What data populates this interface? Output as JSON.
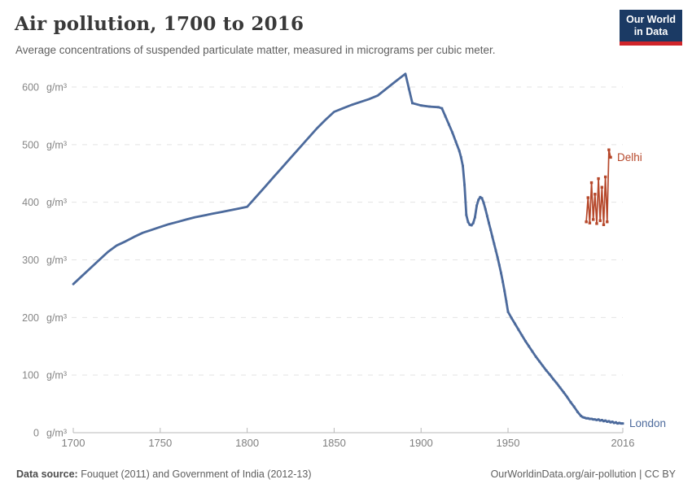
{
  "header": {
    "title": "Air pollution, 1700 to 2016",
    "subtitle": "Average concentrations of suspended particulate matter, measured in micrograms per cubic meter."
  },
  "logo": {
    "line1": "Our World",
    "line2": "in Data",
    "bg_color": "#1b3a64",
    "accent_color": "#d0252a"
  },
  "footer": {
    "source_label": "Data source:",
    "source_text": " Fouquet (2011) and Government of India (2012-13)",
    "link_text": "OurWorldinData.org/air-pollution | CC BY"
  },
  "chart_data": {
    "type": "line",
    "title": "Air pollution, 1700 to 2016",
    "xlabel": "",
    "ylabel": "",
    "unit": "g/m³",
    "xlim": [
      1700,
      2016
    ],
    "ylim": [
      0,
      600
    ],
    "x_ticks": [
      1700,
      1750,
      1800,
      1850,
      1900,
      1950,
      2016
    ],
    "y_ticks": [
      0,
      100,
      200,
      300,
      400,
      500,
      600
    ],
    "grid": "horizontal-dashed",
    "grid_color": "#e3e3e3",
    "axis_color": "#b8b8b8",
    "tick_label_color": "#858585",
    "legend_position": "line-end-labels",
    "series": [
      {
        "name": "London",
        "color": "#4C6A9C",
        "line_width": 2.8,
        "markers_from_year": 1893,
        "points": [
          [
            1700,
            258
          ],
          [
            1705,
            272
          ],
          [
            1710,
            286
          ],
          [
            1715,
            300
          ],
          [
            1720,
            314
          ],
          [
            1725,
            325
          ],
          [
            1730,
            332
          ],
          [
            1735,
            340
          ],
          [
            1740,
            347
          ],
          [
            1745,
            352
          ],
          [
            1750,
            357
          ],
          [
            1755,
            362
          ],
          [
            1760,
            366
          ],
          [
            1765,
            370
          ],
          [
            1770,
            374
          ],
          [
            1775,
            377
          ],
          [
            1780,
            380
          ],
          [
            1785,
            383
          ],
          [
            1790,
            386
          ],
          [
            1795,
            389
          ],
          [
            1800,
            392
          ],
          [
            1805,
            409
          ],
          [
            1810,
            426
          ],
          [
            1815,
            443
          ],
          [
            1820,
            460
          ],
          [
            1825,
            477
          ],
          [
            1830,
            494
          ],
          [
            1835,
            511
          ],
          [
            1840,
            528
          ],
          [
            1845,
            543
          ],
          [
            1850,
            557
          ],
          [
            1855,
            563
          ],
          [
            1860,
            569
          ],
          [
            1865,
            574
          ],
          [
            1870,
            579
          ],
          [
            1875,
            585
          ],
          [
            1880,
            597
          ],
          [
            1885,
            609
          ],
          [
            1891,
            623
          ],
          [
            1893,
            597
          ],
          [
            1895,
            572
          ],
          [
            1900,
            568
          ],
          [
            1905,
            566
          ],
          [
            1910,
            565
          ],
          [
            1912,
            563
          ],
          [
            1914,
            549
          ],
          [
            1916,
            535
          ],
          [
            1918,
            521
          ],
          [
            1920,
            505
          ],
          [
            1922,
            489
          ],
          [
            1923,
            478
          ],
          [
            1924,
            463
          ],
          [
            1925,
            430
          ],
          [
            1926,
            378
          ],
          [
            1927,
            366
          ],
          [
            1928,
            361
          ],
          [
            1929,
            360
          ],
          [
            1930,
            364
          ],
          [
            1931,
            374
          ],
          [
            1932,
            394
          ],
          [
            1933,
            404
          ],
          [
            1934,
            409
          ],
          [
            1935,
            407
          ],
          [
            1936,
            399
          ],
          [
            1937,
            388
          ],
          [
            1938,
            376
          ],
          [
            1939,
            364
          ],
          [
            1940,
            352
          ],
          [
            1941,
            340
          ],
          [
            1942,
            328
          ],
          [
            1943,
            316
          ],
          [
            1944,
            304
          ],
          [
            1945,
            291
          ],
          [
            1946,
            277
          ],
          [
            1947,
            262
          ],
          [
            1948,
            246
          ],
          [
            1949,
            228
          ],
          [
            1950,
            210
          ],
          [
            1952,
            199
          ],
          [
            1954,
            189
          ],
          [
            1956,
            179
          ],
          [
            1958,
            169
          ],
          [
            1960,
            159
          ],
          [
            1962,
            150
          ],
          [
            1964,
            141
          ],
          [
            1966,
            132
          ],
          [
            1968,
            124
          ],
          [
            1970,
            116
          ],
          [
            1972,
            108
          ],
          [
            1974,
            101
          ],
          [
            1976,
            93
          ],
          [
            1978,
            86
          ],
          [
            1980,
            78
          ],
          [
            1982,
            70
          ],
          [
            1984,
            62
          ],
          [
            1986,
            53
          ],
          [
            1988,
            45
          ],
          [
            1990,
            36
          ],
          [
            1992,
            29
          ],
          [
            1993,
            27
          ],
          [
            1994,
            26
          ],
          [
            1995,
            25
          ],
          [
            1996,
            25
          ],
          [
            1997,
            24
          ],
          [
            1998,
            24
          ],
          [
            1999,
            23
          ],
          [
            2000,
            23
          ],
          [
            2001,
            22
          ],
          [
            2002,
            23
          ],
          [
            2003,
            21
          ],
          [
            2004,
            22
          ],
          [
            2005,
            20
          ],
          [
            2006,
            21
          ],
          [
            2007,
            19
          ],
          [
            2008,
            20
          ],
          [
            2009,
            18
          ],
          [
            2010,
            19
          ],
          [
            2011,
            17
          ],
          [
            2012,
            18
          ],
          [
            2013,
            16
          ],
          [
            2014,
            17
          ],
          [
            2015,
            16
          ],
          [
            2016,
            16
          ]
        ]
      },
      {
        "name": "Delhi",
        "color": "#B6482B",
        "line_width": 1.7,
        "markers_from_year": 1995,
        "points": [
          [
            1995,
            366
          ],
          [
            1996,
            408
          ],
          [
            1997,
            364
          ],
          [
            1998,
            434
          ],
          [
            1999,
            370
          ],
          [
            2000,
            414
          ],
          [
            2001,
            363
          ],
          [
            2002,
            441
          ],
          [
            2003,
            368
          ],
          [
            2004,
            426
          ],
          [
            2005,
            361
          ],
          [
            2006,
            444
          ],
          [
            2007,
            366
          ],
          [
            2008,
            491
          ],
          [
            2009,
            478
          ]
        ]
      }
    ]
  }
}
